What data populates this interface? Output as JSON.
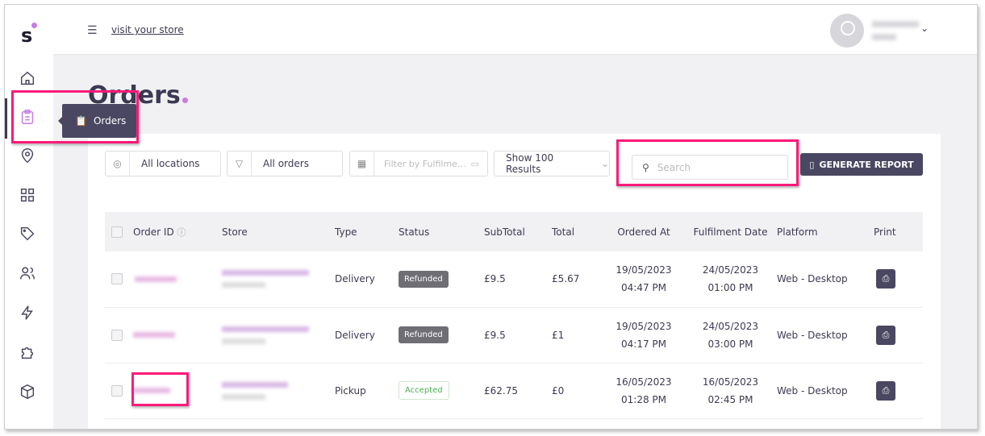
{
  "header": {
    "visit_link": "visit your store"
  },
  "sidebar": {
    "tooltip": "Orders",
    "items": [
      "home",
      "orders",
      "locations",
      "categories",
      "tags",
      "customers",
      "integrations",
      "extensions",
      "products"
    ]
  },
  "page": {
    "title": "Orders"
  },
  "filters": {
    "location": "All locations",
    "orders": "All orders",
    "date_placeholder": "Filter by Fulfilme...",
    "results": "Show 100 Results",
    "search_placeholder": "Search",
    "generate_report": "GENERATE REPORT"
  },
  "table": {
    "columns": [
      "Order ID",
      "Store",
      "Type",
      "Status",
      "SubTotal",
      "Total",
      "Ordered At",
      "Fulfilment Date",
      "Platform",
      "Print"
    ],
    "rows": [
      {
        "type": "Delivery",
        "status": "Refunded",
        "subtotal": "£9.5",
        "total": "£5.67",
        "ordered_date": "19/05/2023",
        "ordered_time": "04:47 PM",
        "fulfil_date": "24/05/2023",
        "fulfil_time": "01:00 PM",
        "platform": "Web - Desktop"
      },
      {
        "type": "Delivery",
        "status": "Refunded",
        "subtotal": "£9.5",
        "total": "£1",
        "ordered_date": "19/05/2023",
        "ordered_time": "04:17 PM",
        "fulfil_date": "24/05/2023",
        "fulfil_time": "03:00 PM",
        "platform": "Web - Desktop"
      },
      {
        "type": "Pickup",
        "status": "Accepted",
        "subtotal": "£62.75",
        "total": "£0",
        "ordered_date": "16/05/2023",
        "ordered_time": "01:28 PM",
        "fulfil_date": "16/05/2023",
        "fulfil_time": "02:45 PM",
        "platform": "Web - Desktop"
      }
    ]
  },
  "colors": {
    "accent": "#c77ce0",
    "primary": "#4a4762",
    "highlight": "#ff1a7a"
  }
}
